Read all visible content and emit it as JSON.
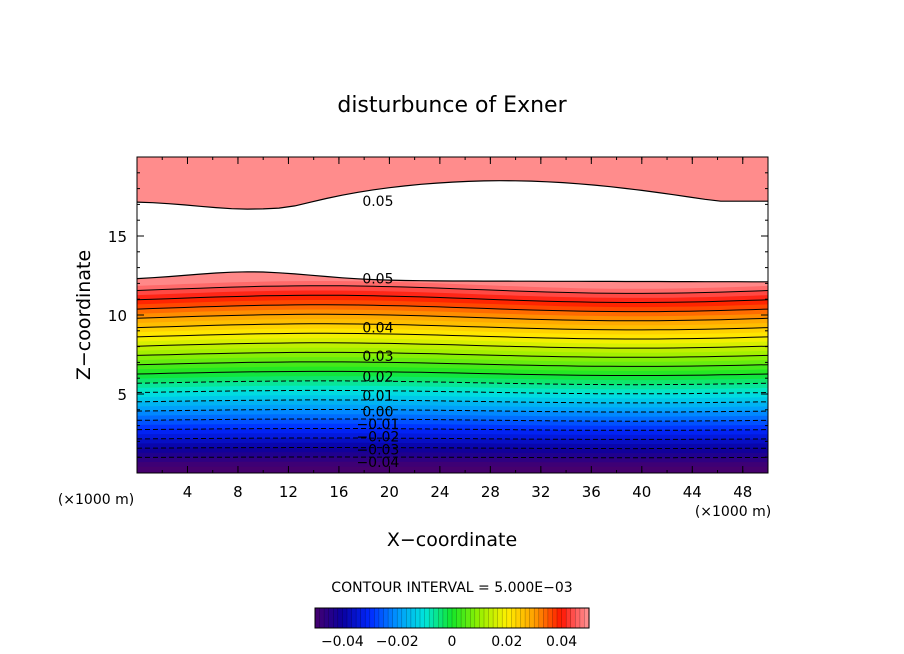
{
  "chart_data": {
    "type": "contour",
    "title": "disturbunce of Exner",
    "xlabel": "X−coordinate",
    "ylabel": "Z−coordinate",
    "x_unit": "(×1000 m)",
    "y_unit": "(×1000 m)",
    "xlim": [
      0,
      50
    ],
    "ylim": [
      0,
      20
    ],
    "x_ticks": [
      4,
      8,
      12,
      16,
      20,
      24,
      28,
      32,
      36,
      40,
      44,
      48
    ],
    "y_ticks": [
      5,
      10,
      15
    ],
    "contour_interval_text": "CONTOUR INTERVAL = 5.000E−03",
    "contour_labels": [
      {
        "text": "0.05",
        "x": 17.5,
        "z": 17.2
      },
      {
        "text": "0.05",
        "x": 17.5,
        "z": 12.3
      },
      {
        "text": "0.04",
        "x": 17.5,
        "z": 9.2
      },
      {
        "text": "0.03",
        "x": 17.5,
        "z": 7.4
      },
      {
        "text": "0.02",
        "x": 17.5,
        "z": 6.1
      },
      {
        "text": "0.01",
        "x": 17.5,
        "z": 4.9
      },
      {
        "text": "0.00",
        "x": 17.5,
        "z": 3.9
      },
      {
        "text": "−0.01",
        "x": 17.5,
        "z": 3.1
      },
      {
        "text": "−0.02",
        "x": 17.5,
        "z": 2.3
      },
      {
        "text": "−0.03",
        "x": 17.5,
        "z": 1.5
      },
      {
        "text": "−0.04",
        "x": 17.5,
        "z": 0.7
      }
    ],
    "colorbar": {
      "range": [
        -0.05,
        0.05
      ],
      "tick_labels": [
        "−0.04",
        "−0.02",
        "0",
        "0.02",
        "0.04"
      ],
      "tick_values": [
        -0.04,
        -0.02,
        0,
        0.02,
        0.04
      ]
    },
    "colors": {
      "undefined_region": "#ffffff",
      "axis": "#000000"
    }
  }
}
